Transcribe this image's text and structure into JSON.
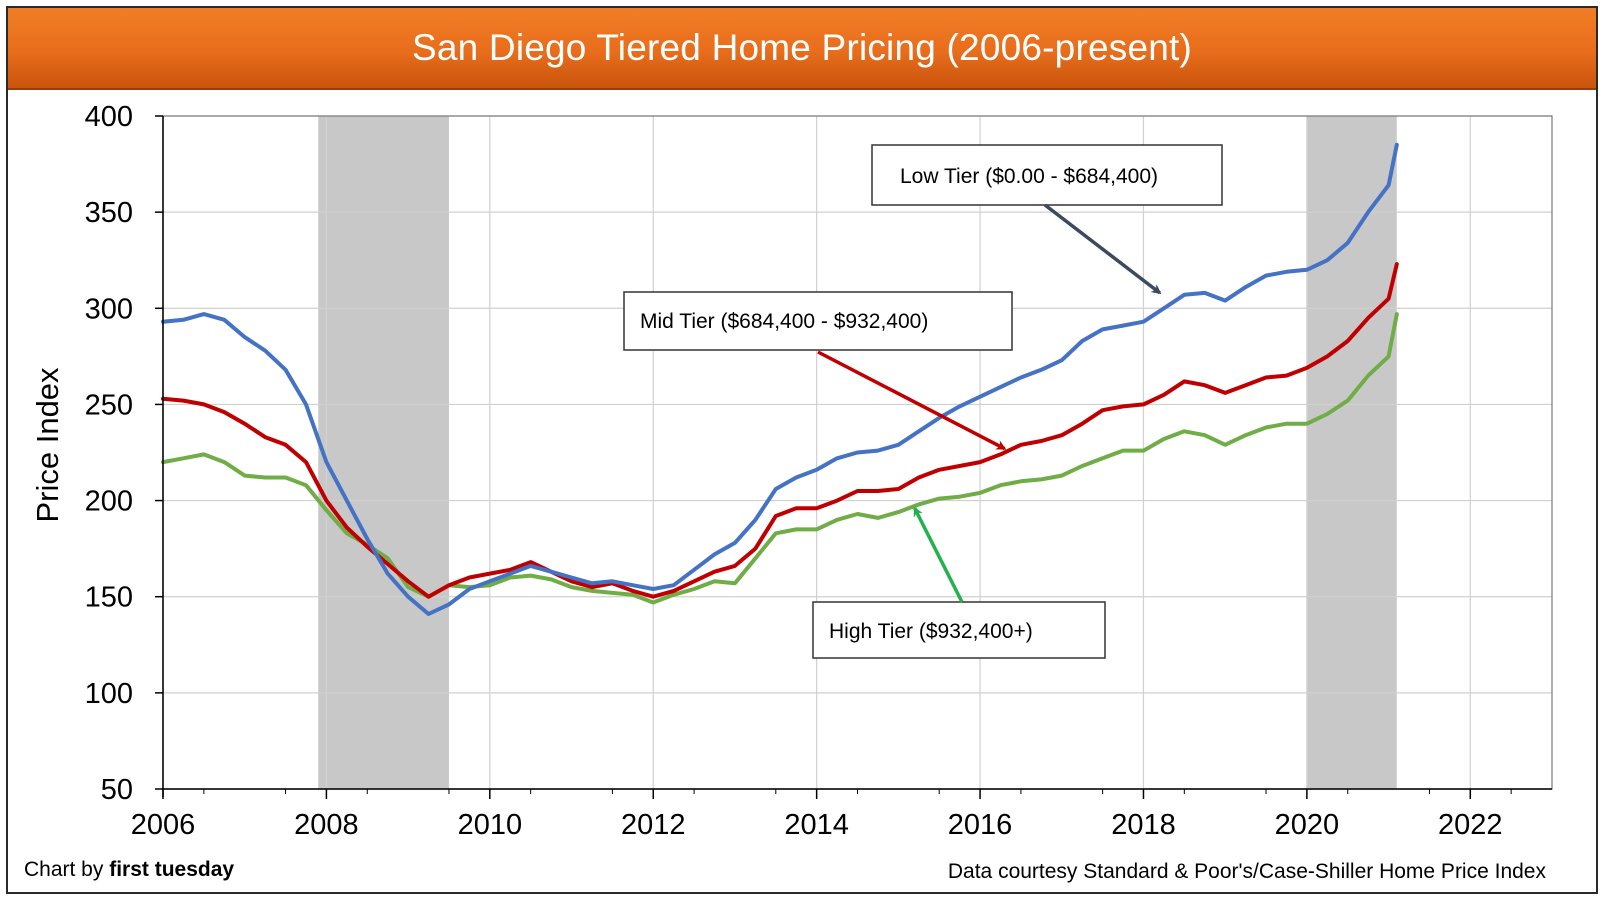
{
  "header": {
    "title": "San Diego Tiered Home Pricing (2006-present)"
  },
  "credits": {
    "left_prefix": "Chart by",
    "left_brand": "first tuesday",
    "right": "Data courtesy Standard & Poor's/Case-Shiller Home Price Index"
  },
  "colors": {
    "low": "#4472c4",
    "mid": "#c00000",
    "high": "#70ad47",
    "shade": "#c8c8c8",
    "low_arrow": "#3b4a5c",
    "high_arrow": "#22b14c"
  },
  "chart_data": {
    "type": "line",
    "title": "San Diego Tiered Home Pricing (2006-present)",
    "xlabel": "",
    "ylabel": "Price Index",
    "xlim": [
      2006,
      2023
    ],
    "ylim": [
      50,
      400
    ],
    "xticks": [
      2006,
      2008,
      2010,
      2012,
      2014,
      2016,
      2018,
      2020,
      2022
    ],
    "yticks": [
      50,
      100,
      150,
      200,
      250,
      300,
      350,
      400
    ],
    "grid": true,
    "legend": "none",
    "shaded_regions": [
      {
        "from": 2007.9,
        "to": 2009.5
      },
      {
        "from": 2020.0,
        "to": 2021.1
      }
    ],
    "series": [
      {
        "name": "Low Tier ($0.00 - $684,400)",
        "x": [
          2006.0,
          2006.25,
          2006.5,
          2006.75,
          2007.0,
          2007.25,
          2007.5,
          2007.75,
          2008.0,
          2008.25,
          2008.5,
          2008.75,
          2009.0,
          2009.25,
          2009.5,
          2009.75,
          2010.0,
          2010.25,
          2010.5,
          2010.75,
          2011.0,
          2011.25,
          2011.5,
          2011.75,
          2012.0,
          2012.25,
          2012.5,
          2012.75,
          2013.0,
          2013.25,
          2013.5,
          2013.75,
          2014.0,
          2014.25,
          2014.5,
          2014.75,
          2015.0,
          2015.25,
          2015.5,
          2015.75,
          2016.0,
          2016.25,
          2016.5,
          2016.75,
          2017.0,
          2017.25,
          2017.5,
          2017.75,
          2018.0,
          2018.25,
          2018.5,
          2018.75,
          2019.0,
          2019.25,
          2019.5,
          2019.75,
          2020.0,
          2020.25,
          2020.5,
          2020.75,
          2021.0,
          2021.1
        ],
        "y": [
          293,
          294,
          297,
          294,
          285,
          278,
          268,
          250,
          220,
          200,
          180,
          162,
          150,
          141,
          146,
          154,
          158,
          162,
          166,
          163,
          160,
          157,
          158,
          156,
          154,
          156,
          164,
          172,
          178,
          190,
          206,
          212,
          216,
          222,
          225,
          226,
          229,
          236,
          243,
          249,
          254,
          259,
          264,
          268,
          273,
          283,
          289,
          291,
          293,
          300,
          307,
          308,
          304,
          311,
          317,
          319,
          320,
          325,
          334,
          350,
          364,
          385
        ]
      },
      {
        "name": "Mid Tier ($684,400 - $932,400)",
        "x": [
          2006.0,
          2006.25,
          2006.5,
          2006.75,
          2007.0,
          2007.25,
          2007.5,
          2007.75,
          2008.0,
          2008.25,
          2008.5,
          2008.75,
          2009.0,
          2009.25,
          2009.5,
          2009.75,
          2010.0,
          2010.25,
          2010.5,
          2010.75,
          2011.0,
          2011.25,
          2011.5,
          2011.75,
          2012.0,
          2012.25,
          2012.5,
          2012.75,
          2013.0,
          2013.25,
          2013.5,
          2013.75,
          2014.0,
          2014.25,
          2014.5,
          2014.75,
          2015.0,
          2015.25,
          2015.5,
          2015.75,
          2016.0,
          2016.25,
          2016.5,
          2016.75,
          2017.0,
          2017.25,
          2017.5,
          2017.75,
          2018.0,
          2018.25,
          2018.5,
          2018.75,
          2019.0,
          2019.25,
          2019.5,
          2019.75,
          2020.0,
          2020.25,
          2020.5,
          2020.75,
          2021.0,
          2021.1
        ],
        "y": [
          253,
          252,
          250,
          246,
          240,
          233,
          229,
          220,
          200,
          186,
          176,
          167,
          158,
          150,
          156,
          160,
          162,
          164,
          168,
          163,
          158,
          155,
          157,
          153,
          150,
          153,
          158,
          163,
          166,
          175,
          192,
          196,
          196,
          200,
          205,
          205,
          206,
          212,
          216,
          218,
          220,
          224,
          229,
          231,
          234,
          240,
          247,
          249,
          250,
          255,
          262,
          260,
          256,
          260,
          264,
          265,
          269,
          275,
          283,
          295,
          305,
          323
        ]
      },
      {
        "name": "High Tier ($932,400+)",
        "x": [
          2006.0,
          2006.25,
          2006.5,
          2006.75,
          2007.0,
          2007.25,
          2007.5,
          2007.75,
          2008.0,
          2008.25,
          2008.5,
          2008.75,
          2009.0,
          2009.25,
          2009.5,
          2009.75,
          2010.0,
          2010.25,
          2010.5,
          2010.75,
          2011.0,
          2011.25,
          2011.5,
          2011.75,
          2012.0,
          2012.25,
          2012.5,
          2012.75,
          2013.0,
          2013.25,
          2013.5,
          2013.75,
          2014.0,
          2014.25,
          2014.5,
          2014.75,
          2015.0,
          2015.25,
          2015.5,
          2015.75,
          2016.0,
          2016.25,
          2016.5,
          2016.75,
          2017.0,
          2017.25,
          2017.5,
          2017.75,
          2018.0,
          2018.25,
          2018.5,
          2018.75,
          2019.0,
          2019.25,
          2019.5,
          2019.75,
          2020.0,
          2020.25,
          2020.5,
          2020.75,
          2021.0,
          2021.1
        ],
        "y": [
          220,
          222,
          224,
          220,
          213,
          212,
          212,
          208,
          195,
          183,
          177,
          170,
          155,
          150,
          156,
          155,
          156,
          160,
          161,
          159,
          155,
          153,
          152,
          151,
          147,
          151,
          154,
          158,
          157,
          170,
          183,
          185,
          185,
          190,
          193,
          191,
          194,
          198,
          201,
          202,
          204,
          208,
          210,
          211,
          213,
          218,
          222,
          226,
          226,
          232,
          236,
          234,
          229,
          234,
          238,
          240,
          240,
          245,
          252,
          265,
          275,
          297
        ]
      }
    ],
    "annotations": [
      {
        "text": "Low Tier ($0.00 - $684,400)",
        "points_to": [
          2018.2,
          308
        ]
      },
      {
        "text": "Mid Tier ($684,400 - $932,400)",
        "points_to": [
          2016.3,
          227
        ]
      },
      {
        "text": "High Tier ($932,400+)",
        "points_to": [
          2015.2,
          196
        ]
      }
    ]
  }
}
